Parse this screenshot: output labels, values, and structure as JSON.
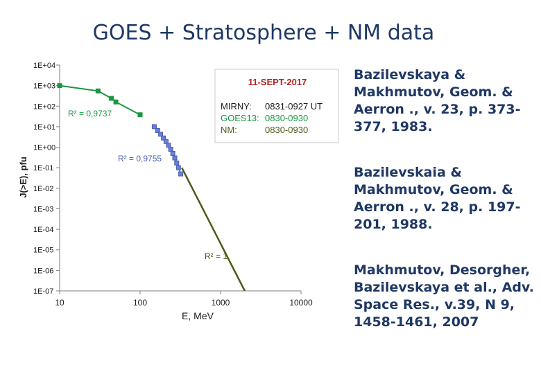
{
  "slide": {
    "title": "GOES + Stratosphere + NM  data",
    "references": [
      "Bazilevskaya & Makhmutov, Geom. & Aerron ., v. 23, p. 373-377, 1983.",
      "Bazilevskaia & Makhmutov, Geom. & Aerron ., v. 28, p. 197-201, 1988.",
      "Makhmutov, Desorgher, Bazilevskaya et al., Adv. Space Res., v.39, N 9, 1458-1461, 2007"
    ]
  },
  "chart_data": {
    "type": "line",
    "xlabel": "E, MeV",
    "ylabel": "J(>E), pfu",
    "x_scale": "log",
    "y_scale": "log",
    "xlim": [
      10,
      10000
    ],
    "ylim": [
      1e-07,
      10000
    ],
    "x_ticks": [
      "10",
      "100",
      "1000",
      "10000"
    ],
    "y_ticks": [
      "1E-07",
      "1E-06",
      "1E-05",
      "1E-04",
      "1E-03",
      "1E-02",
      "1E-01",
      "1E+00",
      "1E+01",
      "1E+02",
      "1E+03",
      "1E+04"
    ],
    "legend_box": {
      "title": "11-SEPT-2017",
      "lines": [
        {
          "label": "MIRNY:",
          "value": "0831-0927 UT",
          "color": "#1a1a1a"
        },
        {
          "label": "GOES13:",
          "value": "0830-0930",
          "color": "#1a9641"
        },
        {
          "label": "NM:",
          "value": "0830-0930",
          "color": "#4d5a1a"
        }
      ]
    },
    "annotations": [
      {
        "text": "R² = 0,9737",
        "color": "#1a9641"
      },
      {
        "text": "R² = 0,9755",
        "color": "#4a5fb0"
      },
      {
        "text": "R² = 1",
        "color": "#4d5a1a"
      }
    ],
    "series": [
      {
        "color": "#1a9641",
        "marker": "square",
        "points": [
          [
            10,
            1000
          ],
          [
            30,
            550
          ],
          [
            44,
            240
          ],
          [
            50,
            160
          ],
          [
            100,
            38
          ]
        ]
      },
      {
        "color": "#6b7fd6",
        "marker": "square",
        "points": [
          [
            150,
            10
          ],
          [
            165,
            6.5
          ],
          [
            180,
            4.3
          ],
          [
            195,
            2.8
          ],
          [
            210,
            1.9
          ],
          [
            225,
            1.25
          ],
          [
            240,
            0.8
          ],
          [
            255,
            0.5
          ],
          [
            270,
            0.3
          ],
          [
            285,
            0.17
          ],
          [
            300,
            0.1
          ],
          [
            320,
            0.05
          ]
        ]
      },
      {
        "color": "#4d5a1a",
        "marker": "none",
        "points": [
          [
            330,
            0.1
          ],
          [
            2000,
            1e-07
          ]
        ]
      }
    ]
  }
}
